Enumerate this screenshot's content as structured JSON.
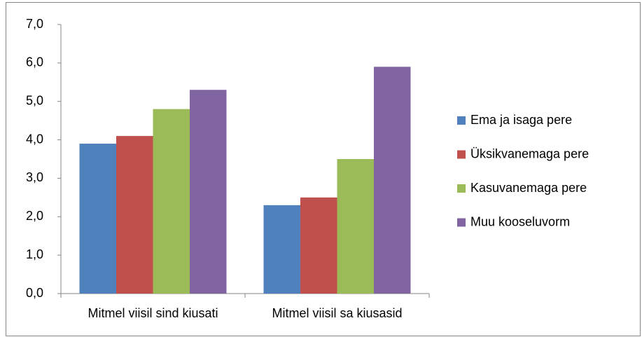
{
  "chart_data": {
    "type": "bar",
    "categories": [
      "Mitmel viisil sind kiusati",
      "Mitmel viisil sa kiusasid"
    ],
    "series": [
      {
        "name": "Ema ja isaga pere",
        "color": "#4f81bd",
        "values": [
          3.9,
          2.3
        ]
      },
      {
        "name": "Üksikvanemaga pere",
        "color": "#c0504d",
        "values": [
          4.1,
          2.5
        ]
      },
      {
        "name": "Kasuvanemaga pere",
        "color": "#9bbb59",
        "values": [
          4.8,
          3.5
        ]
      },
      {
        "name": "Muu kooseluvorm",
        "color": "#8064a2",
        "values": [
          5.3,
          5.9
        ]
      }
    ],
    "ylim": [
      0,
      7
    ],
    "yticks": [
      {
        "value": 0,
        "label": "0,0"
      },
      {
        "value": 1,
        "label": "1,0"
      },
      {
        "value": 2,
        "label": "2,0"
      },
      {
        "value": 3,
        "label": "3,0"
      },
      {
        "value": 4,
        "label": "4,0"
      },
      {
        "value": 5,
        "label": "5,0"
      },
      {
        "value": 6,
        "label": "6,0"
      },
      {
        "value": 7,
        "label": "7,0"
      }
    ],
    "grid": false,
    "legend": "right"
  }
}
